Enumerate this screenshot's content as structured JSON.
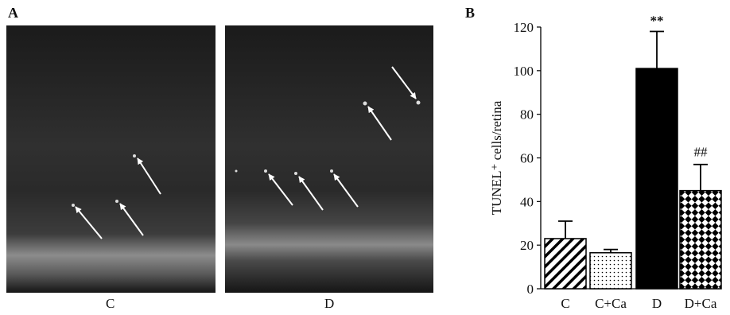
{
  "panel_a": {
    "letter": "A",
    "images": [
      {
        "label": "C",
        "arrow_count": 3
      },
      {
        "label": "D",
        "arrow_count": 5
      }
    ]
  },
  "panel_b": {
    "letter": "B"
  },
  "chart_data": {
    "type": "bar",
    "title": "",
    "xlabel": "",
    "ylabel": "TUNEL⁺ cells/retina",
    "ylim": [
      0,
      120
    ],
    "yticks": [
      0,
      20,
      40,
      60,
      80,
      100,
      120
    ],
    "categories": [
      "C",
      "C+Ca",
      "D",
      "D+Ca"
    ],
    "values": [
      23,
      16.5,
      101,
      45
    ],
    "errors": [
      8,
      1.5,
      17,
      12
    ],
    "annotations": [
      "",
      "",
      "**",
      "##"
    ],
    "fills": [
      "diagonal-hatch",
      "dots",
      "solid-black",
      "checkerboard"
    ],
    "grid": false,
    "legend": "none"
  }
}
